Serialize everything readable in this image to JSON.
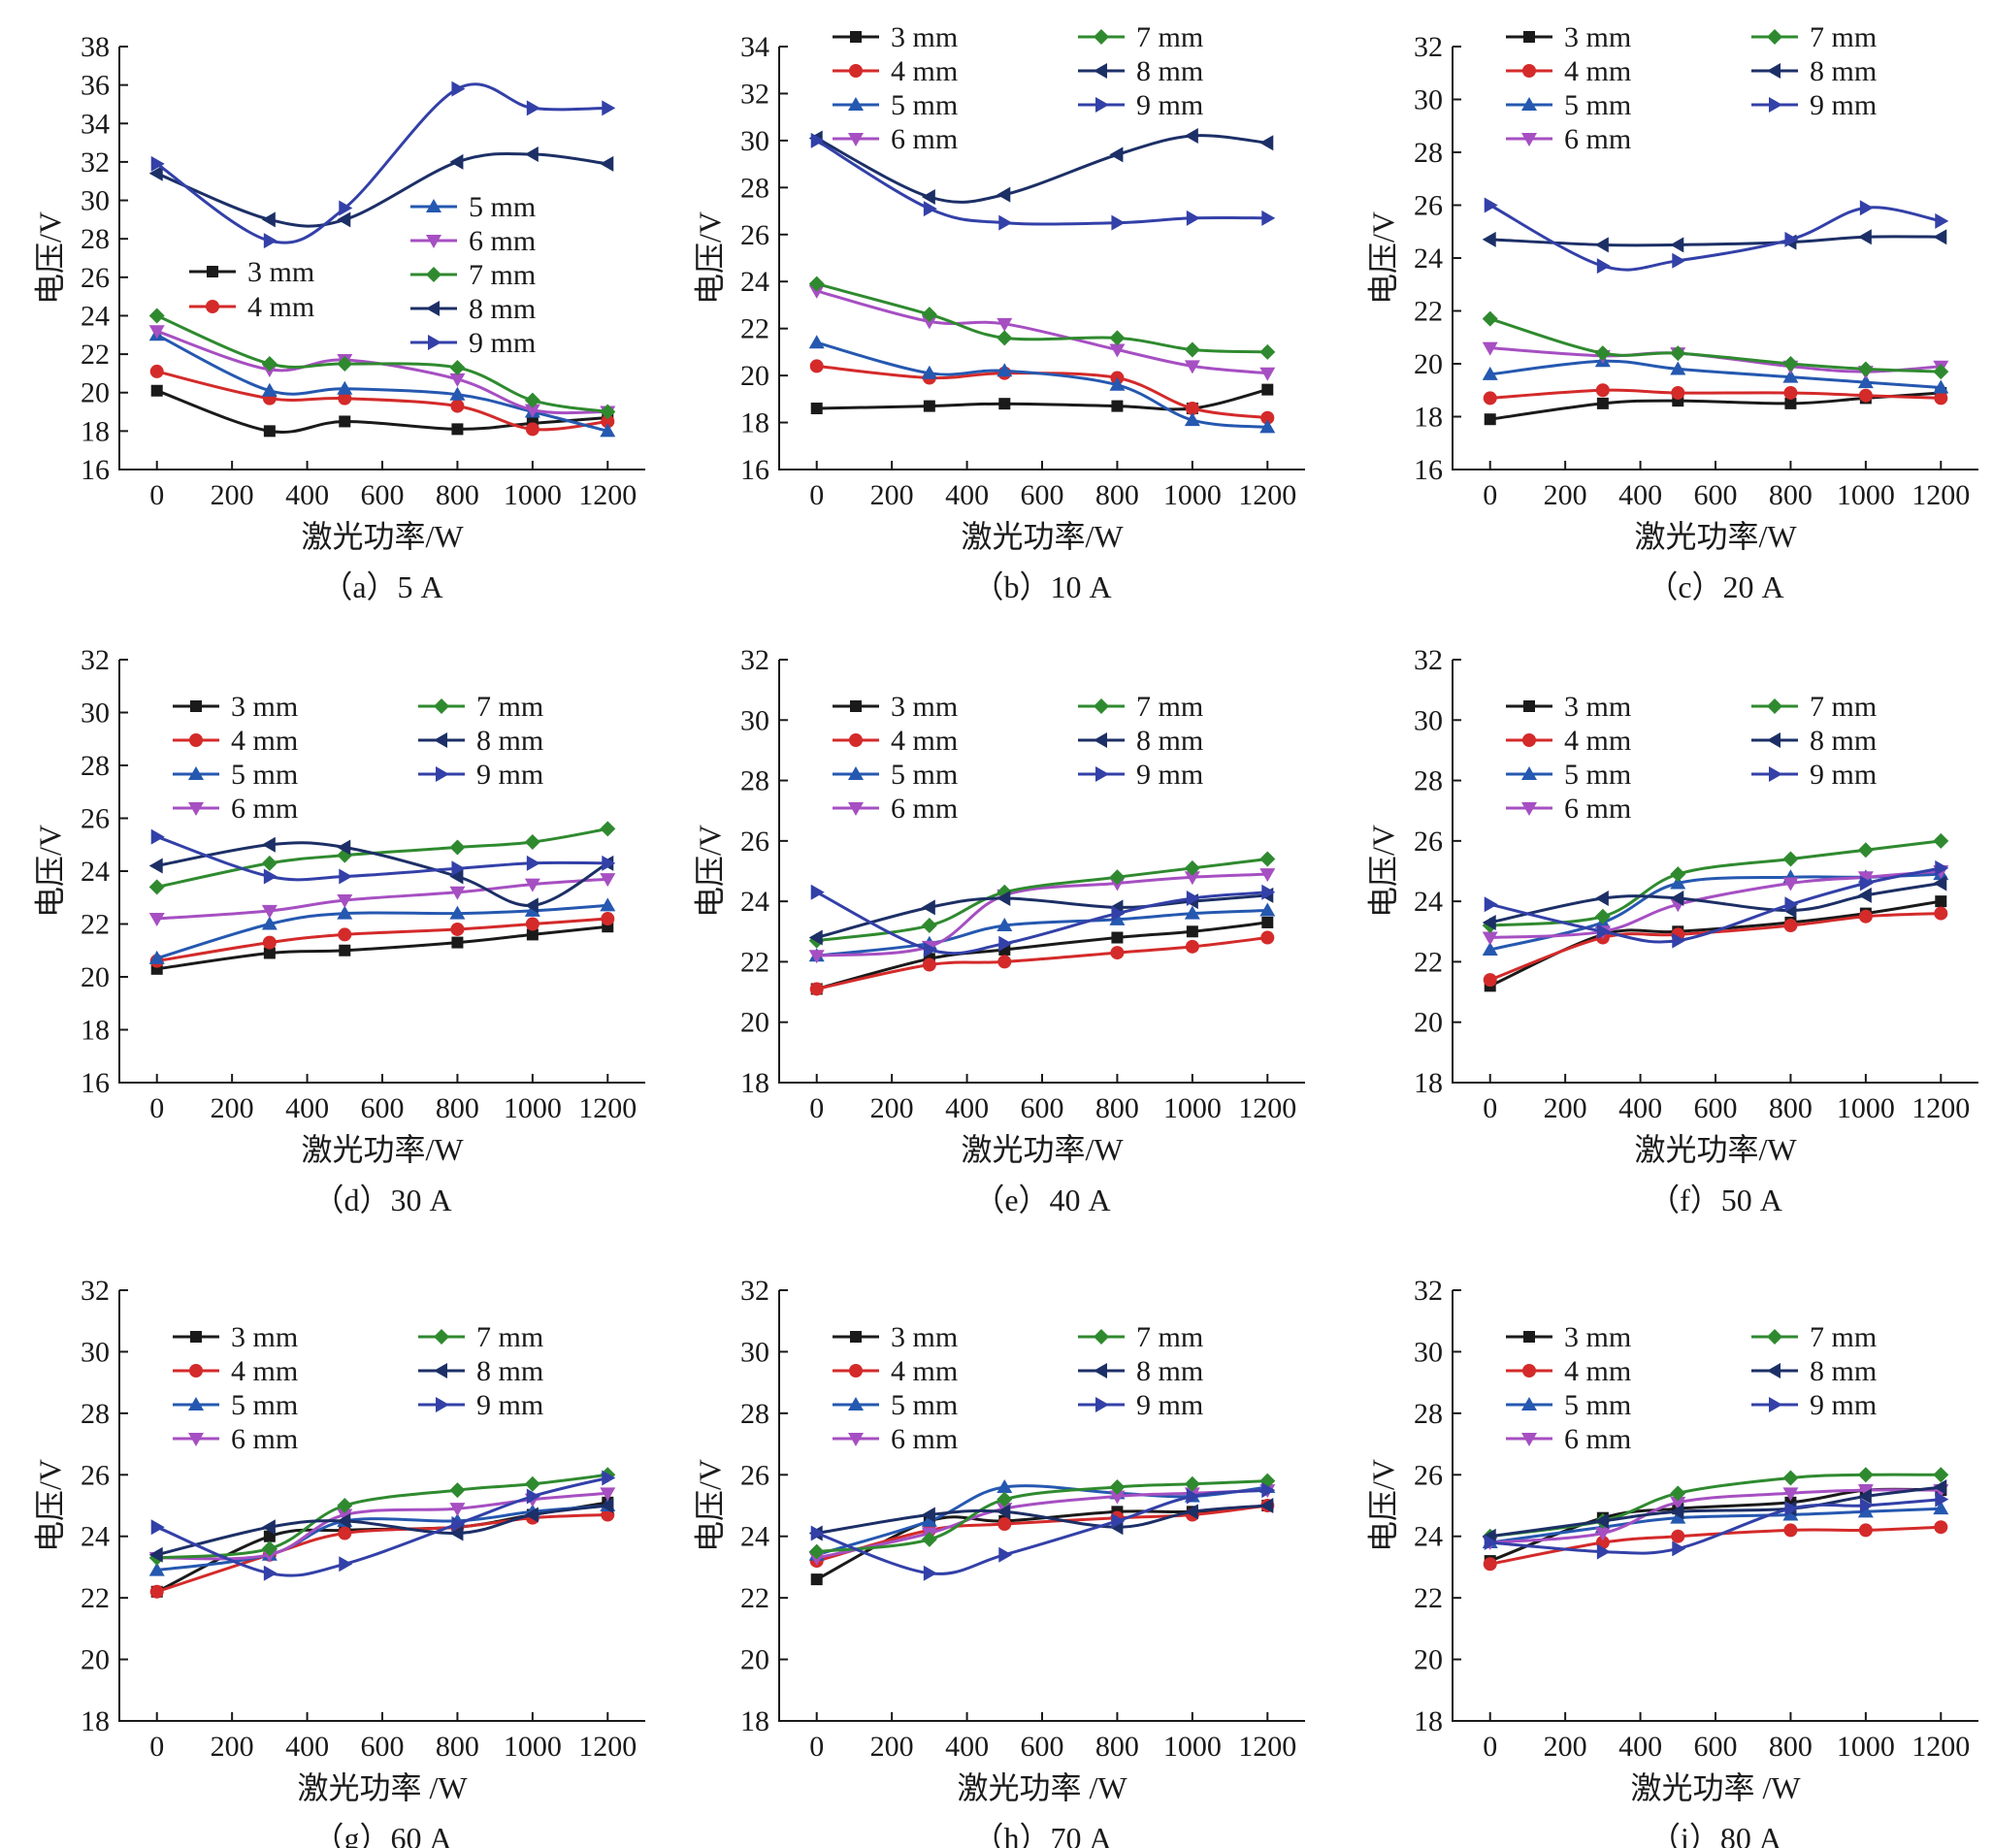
{
  "figure": {
    "name": "laser-power-voltage-panels"
  },
  "series_styles": [
    {
      "name": "3 mm",
      "color": "#1a1a1a",
      "marker": "square"
    },
    {
      "name": "4 mm",
      "color": "#d42a2a",
      "marker": "circle"
    },
    {
      "name": "5 mm",
      "color": "#2558b0",
      "marker": "triangle-up"
    },
    {
      "name": "6 mm",
      "color": "#a64fc2",
      "marker": "triangle-down"
    },
    {
      "name": "7 mm",
      "color": "#2f8a2f",
      "marker": "diamond"
    },
    {
      "name": "8 mm",
      "color": "#1c2f66",
      "marker": "triangle-left"
    },
    {
      "name": "9 mm",
      "color": "#3340a8",
      "marker": "triangle-right"
    }
  ],
  "chart_data": [
    {
      "type": "line",
      "caption": "（a）5 A",
      "xlabel": "激光功率/W",
      "ylabel": "电压/V",
      "x": [
        0,
        300,
        500,
        800,
        1000,
        1200
      ],
      "xlim": [
        -100,
        1300
      ],
      "ylim": [
        16,
        38
      ],
      "xticks": [
        0,
        200,
        400,
        600,
        800,
        1000,
        1200
      ],
      "yticks": [
        16,
        18,
        20,
        22,
        24,
        26,
        28,
        30,
        32,
        34,
        36,
        38
      ],
      "legend_layout": "single-column",
      "legend_groups": [
        [
          "5 mm",
          "6 mm",
          "7 mm",
          "8 mm",
          "9 mm"
        ],
        [
          "3 mm",
          "4 mm"
        ]
      ],
      "series": [
        {
          "name": "3 mm",
          "values": [
            20.1,
            18.0,
            18.5,
            18.1,
            18.4,
            18.7
          ]
        },
        {
          "name": "4 mm",
          "values": [
            21.1,
            19.7,
            19.7,
            19.3,
            18.1,
            18.5
          ]
        },
        {
          "name": "5 mm",
          "values": [
            23.0,
            20.1,
            20.2,
            19.9,
            19.0,
            18.0
          ]
        },
        {
          "name": "6 mm",
          "values": [
            23.2,
            21.2,
            21.7,
            20.7,
            19.1,
            19.0
          ]
        },
        {
          "name": "7 mm",
          "values": [
            24.0,
            21.5,
            21.5,
            21.3,
            19.6,
            19.0
          ]
        },
        {
          "name": "8 mm",
          "values": [
            31.4,
            29.0,
            29.0,
            32.0,
            32.4,
            31.9
          ]
        },
        {
          "name": "9 mm",
          "values": [
            31.9,
            27.9,
            29.6,
            35.8,
            34.8,
            34.8
          ]
        }
      ]
    },
    {
      "type": "line",
      "caption": "（b）10 A",
      "xlabel": "激光功率/W",
      "ylabel": "电压/V",
      "x": [
        0,
        300,
        500,
        800,
        1000,
        1200
      ],
      "xlim": [
        -100,
        1300
      ],
      "ylim": [
        16,
        34
      ],
      "xticks": [
        0,
        200,
        400,
        600,
        800,
        1000,
        1200
      ],
      "yticks": [
        16,
        18,
        20,
        22,
        24,
        26,
        28,
        30,
        32,
        34
      ],
      "legend_layout": "two-column",
      "series": [
        {
          "name": "3 mm",
          "values": [
            18.6,
            18.7,
            18.8,
            18.7,
            18.6,
            19.4
          ]
        },
        {
          "name": "4 mm",
          "values": [
            20.4,
            19.9,
            20.1,
            19.9,
            18.6,
            18.2
          ]
        },
        {
          "name": "5 mm",
          "values": [
            21.4,
            20.1,
            20.2,
            19.6,
            18.1,
            17.8
          ]
        },
        {
          "name": "6 mm",
          "values": [
            23.6,
            22.3,
            22.2,
            21.1,
            20.4,
            20.1
          ]
        },
        {
          "name": "7 mm",
          "values": [
            23.9,
            22.6,
            21.6,
            21.6,
            21.1,
            21.0
          ]
        },
        {
          "name": "8 mm",
          "values": [
            30.1,
            27.6,
            27.7,
            29.4,
            30.2,
            29.9
          ]
        },
        {
          "name": "9 mm",
          "values": [
            30.0,
            27.1,
            26.5,
            26.5,
            26.7,
            26.7
          ]
        }
      ]
    },
    {
      "type": "line",
      "caption": "（c）20 A",
      "xlabel": "激光功率/W",
      "ylabel": "电压/V",
      "x": [
        0,
        300,
        500,
        800,
        1000,
        1200
      ],
      "xlim": [
        -100,
        1300
      ],
      "ylim": [
        16,
        32
      ],
      "xticks": [
        0,
        200,
        400,
        600,
        800,
        1000,
        1200
      ],
      "yticks": [
        16,
        18,
        20,
        22,
        24,
        26,
        28,
        30,
        32
      ],
      "legend_layout": "two-column",
      "series": [
        {
          "name": "3 mm",
          "values": [
            17.9,
            18.5,
            18.6,
            18.5,
            18.7,
            18.9
          ]
        },
        {
          "name": "4 mm",
          "values": [
            18.7,
            19.0,
            18.9,
            18.9,
            18.8,
            18.7
          ]
        },
        {
          "name": "5 mm",
          "values": [
            19.6,
            20.1,
            19.8,
            19.5,
            19.3,
            19.1
          ]
        },
        {
          "name": "6 mm",
          "values": [
            20.6,
            20.3,
            20.4,
            19.9,
            19.7,
            19.9
          ]
        },
        {
          "name": "7 mm",
          "values": [
            21.7,
            20.4,
            20.4,
            20.0,
            19.8,
            19.7
          ]
        },
        {
          "name": "8 mm",
          "values": [
            24.7,
            24.5,
            24.5,
            24.6,
            24.8,
            24.8
          ]
        },
        {
          "name": "9 mm",
          "values": [
            26.0,
            23.7,
            23.9,
            24.7,
            25.9,
            25.4
          ]
        }
      ]
    },
    {
      "type": "line",
      "caption": "（d）30 A",
      "xlabel": "激光功率/W",
      "ylabel": "电压/V",
      "x": [
        0,
        300,
        500,
        800,
        1000,
        1200
      ],
      "xlim": [
        -100,
        1300
      ],
      "ylim": [
        16,
        32
      ],
      "xticks": [
        0,
        200,
        400,
        600,
        800,
        1000,
        1200
      ],
      "yticks": [
        16,
        18,
        20,
        22,
        24,
        26,
        28,
        30,
        32
      ],
      "legend_layout": "two-column",
      "series": [
        {
          "name": "3 mm",
          "values": [
            20.3,
            20.9,
            21.0,
            21.3,
            21.6,
            21.9
          ]
        },
        {
          "name": "4 mm",
          "values": [
            20.6,
            21.3,
            21.6,
            21.8,
            22.0,
            22.2
          ]
        },
        {
          "name": "5 mm",
          "values": [
            20.7,
            22.0,
            22.4,
            22.4,
            22.5,
            22.7
          ]
        },
        {
          "name": "6 mm",
          "values": [
            22.2,
            22.5,
            22.9,
            23.2,
            23.5,
            23.7
          ]
        },
        {
          "name": "7 mm",
          "values": [
            23.4,
            24.3,
            24.6,
            24.9,
            25.1,
            25.6
          ]
        },
        {
          "name": "8 mm",
          "values": [
            24.2,
            25.0,
            24.9,
            23.8,
            22.7,
            24.3
          ]
        },
        {
          "name": "9 mm",
          "values": [
            25.3,
            23.8,
            23.8,
            24.1,
            24.3,
            24.3
          ]
        }
      ]
    },
    {
      "type": "line",
      "caption": "（e）40 A",
      "xlabel": "激光功率/W",
      "ylabel": "电压/V",
      "x": [
        0,
        300,
        500,
        800,
        1000,
        1200
      ],
      "xlim": [
        -100,
        1300
      ],
      "ylim": [
        18,
        32
      ],
      "xticks": [
        0,
        200,
        400,
        600,
        800,
        1000,
        1200
      ],
      "yticks": [
        18,
        20,
        22,
        24,
        26,
        28,
        30,
        32
      ],
      "legend_layout": "two-column",
      "series": [
        {
          "name": "3 mm",
          "values": [
            21.1,
            22.1,
            22.4,
            22.8,
            23.0,
            23.3
          ]
        },
        {
          "name": "4 mm",
          "values": [
            21.1,
            21.9,
            22.0,
            22.3,
            22.5,
            22.8
          ]
        },
        {
          "name": "5 mm",
          "values": [
            22.2,
            22.6,
            23.2,
            23.4,
            23.6,
            23.7
          ]
        },
        {
          "name": "6 mm",
          "values": [
            22.2,
            22.5,
            24.2,
            24.6,
            24.8,
            24.9
          ]
        },
        {
          "name": "7 mm",
          "values": [
            22.7,
            23.2,
            24.3,
            24.8,
            25.1,
            25.4
          ]
        },
        {
          "name": "8 mm",
          "values": [
            22.8,
            23.8,
            24.1,
            23.8,
            24.0,
            24.2
          ]
        },
        {
          "name": "9 mm",
          "values": [
            24.3,
            22.4,
            22.6,
            23.6,
            24.1,
            24.3
          ]
        }
      ]
    },
    {
      "type": "line",
      "caption": "（f）50 A",
      "xlabel": "激光功率/W",
      "ylabel": "电压/V",
      "x": [
        0,
        300,
        500,
        800,
        1000,
        1200
      ],
      "xlim": [
        -100,
        1300
      ],
      "ylim": [
        18,
        32
      ],
      "xticks": [
        0,
        200,
        400,
        600,
        800,
        1000,
        1200
      ],
      "yticks": [
        18,
        20,
        22,
        24,
        26,
        28,
        30,
        32
      ],
      "legend_layout": "two-column",
      "series": [
        {
          "name": "3 mm",
          "values": [
            21.2,
            22.9,
            23.0,
            23.3,
            23.6,
            24.0
          ]
        },
        {
          "name": "4 mm",
          "values": [
            21.4,
            22.8,
            22.9,
            23.2,
            23.5,
            23.6
          ]
        },
        {
          "name": "5 mm",
          "values": [
            22.4,
            23.3,
            24.6,
            24.8,
            24.8,
            24.9
          ]
        },
        {
          "name": "6 mm",
          "values": [
            22.8,
            23.0,
            23.9,
            24.6,
            24.8,
            25.0
          ]
        },
        {
          "name": "7 mm",
          "values": [
            23.2,
            23.5,
            24.9,
            25.4,
            25.7,
            26.0
          ]
        },
        {
          "name": "8 mm",
          "values": [
            23.3,
            24.1,
            24.1,
            23.7,
            24.2,
            24.6
          ]
        },
        {
          "name": "9 mm",
          "values": [
            23.9,
            23.0,
            22.7,
            23.9,
            24.6,
            25.1
          ]
        }
      ]
    },
    {
      "type": "line",
      "caption": "（g）60 A",
      "xlabel": "激光功率 /W",
      "ylabel": "电压/V",
      "x": [
        0,
        300,
        500,
        800,
        1000,
        1200
      ],
      "xlim": [
        -100,
        1300
      ],
      "ylim": [
        18,
        32
      ],
      "xticks": [
        0,
        200,
        400,
        600,
        800,
        1000,
        1200
      ],
      "yticks": [
        18,
        20,
        22,
        24,
        26,
        28,
        30,
        32
      ],
      "legend_layout": "two-column",
      "series": [
        {
          "name": "3 mm",
          "values": [
            22.2,
            24.0,
            24.2,
            24.3,
            24.7,
            25.1
          ]
        },
        {
          "name": "4 mm",
          "values": [
            22.2,
            23.4,
            24.1,
            24.3,
            24.6,
            24.7
          ]
        },
        {
          "name": "5 mm",
          "values": [
            22.9,
            23.4,
            24.5,
            24.5,
            24.8,
            25.0
          ]
        },
        {
          "name": "6 mm",
          "values": [
            23.3,
            23.4,
            24.7,
            24.9,
            25.2,
            25.4
          ]
        },
        {
          "name": "7 mm",
          "values": [
            23.3,
            23.6,
            25.0,
            25.5,
            25.7,
            26.0
          ]
        },
        {
          "name": "8 mm",
          "values": [
            23.4,
            24.3,
            24.5,
            24.1,
            24.7,
            25.0
          ]
        },
        {
          "name": "9 mm",
          "values": [
            24.3,
            22.8,
            23.1,
            24.4,
            25.3,
            25.9
          ]
        }
      ]
    },
    {
      "type": "line",
      "caption": "（h）70 A",
      "xlabel": "激光功率 /W",
      "ylabel": "电压/V",
      "x": [
        0,
        300,
        500,
        800,
        1000,
        1200
      ],
      "xlim": [
        -100,
        1300
      ],
      "ylim": [
        18,
        32
      ],
      "xticks": [
        0,
        200,
        400,
        600,
        800,
        1000,
        1200
      ],
      "yticks": [
        18,
        20,
        22,
        24,
        26,
        28,
        30,
        32
      ],
      "legend_layout": "two-column",
      "series": [
        {
          "name": "3 mm",
          "values": [
            22.6,
            24.5,
            24.5,
            24.8,
            24.8,
            25.0
          ]
        },
        {
          "name": "4 mm",
          "values": [
            23.2,
            24.2,
            24.4,
            24.6,
            24.7,
            25.0
          ]
        },
        {
          "name": "5 mm",
          "values": [
            23.4,
            24.5,
            25.6,
            25.4,
            25.3,
            25.6
          ]
        },
        {
          "name": "6 mm",
          "values": [
            23.3,
            24.1,
            24.9,
            25.3,
            25.4,
            25.5
          ]
        },
        {
          "name": "7 mm",
          "values": [
            23.5,
            23.9,
            25.2,
            25.6,
            25.7,
            25.8
          ]
        },
        {
          "name": "8 mm",
          "values": [
            24.1,
            24.7,
            24.8,
            24.3,
            24.8,
            25.0
          ]
        },
        {
          "name": "9 mm",
          "values": [
            24.1,
            22.8,
            23.4,
            24.5,
            25.3,
            25.5
          ]
        }
      ]
    },
    {
      "type": "line",
      "caption": "（i）80 A",
      "xlabel": "激光功率 /W",
      "ylabel": "电压/V",
      "x": [
        0,
        300,
        500,
        800,
        1000,
        1200
      ],
      "xlim": [
        -100,
        1300
      ],
      "ylim": [
        18,
        32
      ],
      "xticks": [
        0,
        200,
        400,
        600,
        800,
        1000,
        1200
      ],
      "yticks": [
        18,
        20,
        22,
        24,
        26,
        28,
        30,
        32
      ],
      "legend_layout": "two-column",
      "series": [
        {
          "name": "3 mm",
          "values": [
            23.2,
            24.6,
            24.9,
            25.1,
            25.5,
            25.5
          ]
        },
        {
          "name": "4 mm",
          "values": [
            23.1,
            23.8,
            24.0,
            24.2,
            24.2,
            24.3
          ]
        },
        {
          "name": "5 mm",
          "values": [
            23.8,
            24.3,
            24.6,
            24.7,
            24.8,
            24.9
          ]
        },
        {
          "name": "6 mm",
          "values": [
            23.8,
            24.1,
            25.1,
            25.4,
            25.5,
            25.5
          ]
        },
        {
          "name": "7 mm",
          "values": [
            24.0,
            24.5,
            25.4,
            25.9,
            26.0,
            26.0
          ]
        },
        {
          "name": "8 mm",
          "values": [
            24.0,
            24.5,
            24.8,
            24.9,
            25.3,
            25.6
          ]
        },
        {
          "name": "9 mm",
          "values": [
            23.8,
            23.5,
            23.6,
            24.9,
            25.0,
            25.2
          ]
        }
      ]
    }
  ]
}
